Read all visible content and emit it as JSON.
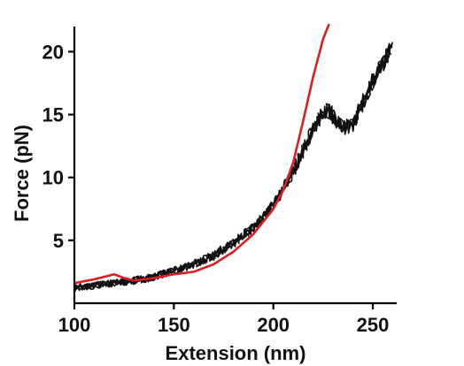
{
  "chart_data": {
    "type": "line",
    "xlabel": "Extension (nm)",
    "ylabel": "Force (pN)",
    "xlim": [
      100,
      262
    ],
    "ylim": [
      0,
      22
    ],
    "xticks": [
      100,
      150,
      200,
      250
    ],
    "yticks": [
      5,
      10,
      15,
      20
    ],
    "x_tick_labels": [
      "100",
      "150",
      "200",
      "250"
    ],
    "y_tick_labels": [
      "5",
      "10",
      "15",
      "20"
    ],
    "grid": false,
    "legend": "none",
    "series": [
      {
        "color": "#dd1c24",
        "style": "smooth",
        "x": [
          100,
          110,
          120,
          125,
          130,
          140,
          150,
          160,
          170,
          180,
          190,
          200,
          205,
          210,
          215,
          220,
          225,
          228
        ],
        "y": [
          1.6,
          1.9,
          2.3,
          2.0,
          1.8,
          2.0,
          2.3,
          2.5,
          3.1,
          4.1,
          5.5,
          7.5,
          9.0,
          11.2,
          14.5,
          18.0,
          21.0,
          22.2
        ]
      },
      {
        "color": "#111111",
        "style": "noisy",
        "x": [
          100,
          110,
          120,
          130,
          140,
          150,
          160,
          170,
          180,
          190,
          200,
          210,
          215,
          220,
          225,
          228,
          232,
          236,
          240,
          245,
          250,
          255,
          260
        ],
        "y": [
          1.2,
          1.4,
          1.6,
          1.8,
          2.1,
          2.6,
          3.1,
          3.8,
          4.8,
          6.0,
          7.8,
          10.4,
          12.2,
          13.8,
          15.2,
          15.3,
          14.5,
          14.0,
          14.2,
          16.0,
          17.6,
          19.1,
          20.6
        ]
      }
    ]
  }
}
